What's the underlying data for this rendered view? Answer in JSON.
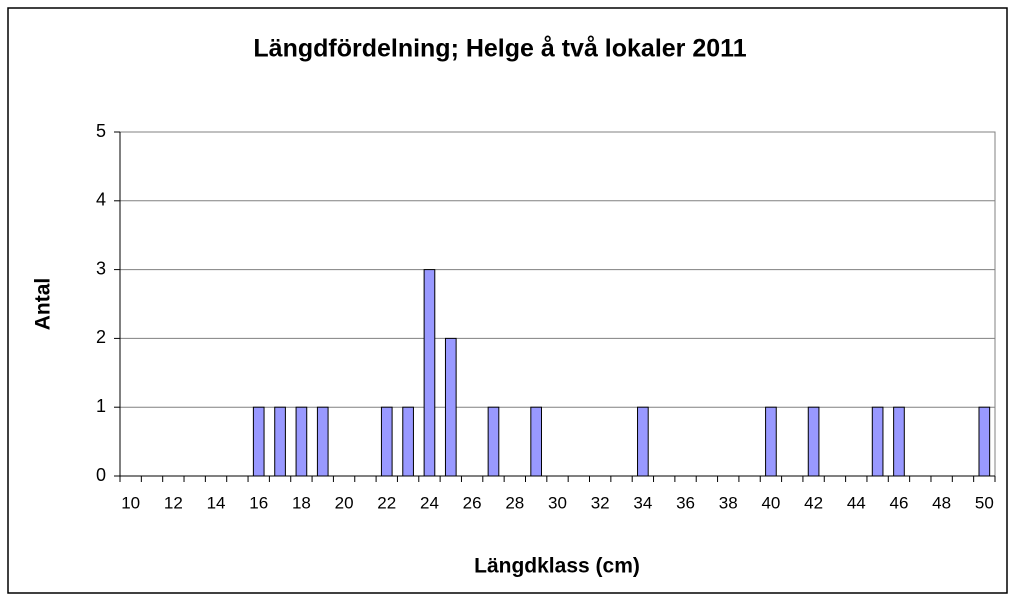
{
  "chart_data": {
    "type": "bar",
    "title": "Längdfördelning; Helge å två lokaler 2011",
    "x_label": "Längdklass (cm)",
    "y_label": "Antal",
    "categories": [
      10,
      null,
      12,
      null,
      14,
      null,
      16,
      null,
      18,
      null,
      20,
      null,
      22,
      null,
      24,
      null,
      26,
      null,
      28,
      null,
      30,
      null,
      32,
      null,
      34,
      null,
      36,
      null,
      38,
      null,
      40,
      null,
      42,
      null,
      44,
      null,
      46,
      null,
      48,
      null,
      50
    ],
    "values": [
      0,
      0,
      0,
      0,
      0,
      0,
      1,
      1,
      1,
      1,
      0,
      0,
      1,
      1,
      3,
      2,
      0,
      1,
      0,
      1,
      0,
      0,
      0,
      0,
      1,
      0,
      0,
      0,
      0,
      0,
      1,
      0,
      1,
      0,
      0,
      1,
      1,
      0,
      0,
      0,
      1
    ],
    "color": "#9999ff",
    "ylim": [
      0,
      5
    ],
    "yticks": [
      0,
      1,
      2,
      3,
      4,
      5
    ],
    "grid": true
  }
}
